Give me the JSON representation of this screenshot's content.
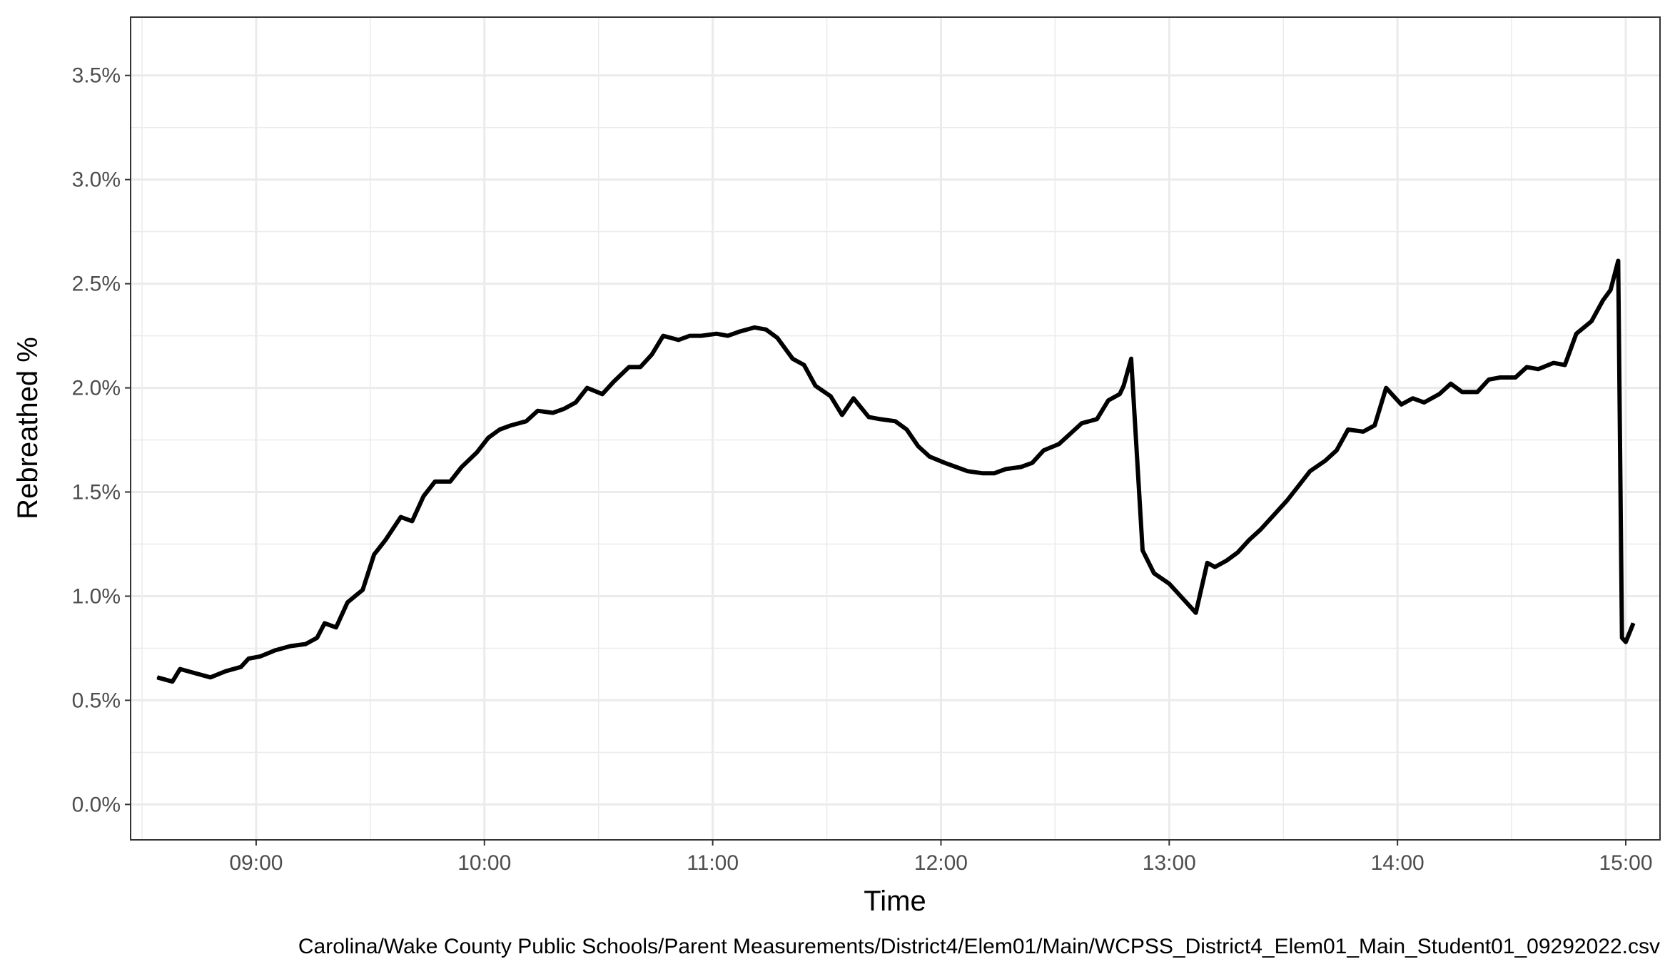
{
  "chart_data": {
    "type": "line",
    "xlabel": "Time",
    "ylabel": "Rebreathed %",
    "caption": "Carolina/Wake County Public Schools/Parent Measurements/District4/Elem01/Main/WCPSS_District4_Elem01_Main_Student01_09292022.csv",
    "x_tick_labels": [
      "09:00",
      "10:00",
      "11:00",
      "12:00",
      "13:00",
      "14:00",
      "15:00"
    ],
    "y_tick_labels": [
      "0.0%",
      "0.5%",
      "1.0%",
      "1.5%",
      "2.0%",
      "2.5%",
      "3.0%",
      "3.5%"
    ],
    "y_ticks": [
      0.0,
      0.5,
      1.0,
      1.5,
      2.0,
      2.5,
      3.0,
      3.5
    ],
    "xlim": [
      "08:27",
      "15:09"
    ],
    "ylim": [
      -0.17,
      3.78
    ],
    "grid": true,
    "line_color": "#000000",
    "series": [
      {
        "x": [
          "08:34",
          "08:38",
          "08:40",
          "08:44",
          "08:48",
          "08:52",
          "08:56",
          "08:58",
          "09:01",
          "09:05",
          "09:09",
          "09:13",
          "09:16",
          "09:18",
          "09:21",
          "09:24",
          "09:28",
          "09:31",
          "09:34",
          "09:38",
          "09:41",
          "09:44",
          "09:47",
          "09:51",
          "09:54",
          "09:58",
          "10:01",
          "10:04",
          "10:07",
          "10:11",
          "10:14",
          "10:18",
          "10:21",
          "10:24",
          "10:27",
          "10:31",
          "10:34",
          "10:38",
          "10:41",
          "10:44",
          "10:47",
          "10:51",
          "10:54",
          "10:57",
          "11:01",
          "11:04",
          "11:07",
          "11:11",
          "11:14",
          "11:17",
          "11:21",
          "11:24",
          "11:27",
          "11:31",
          "11:34",
          "11:37",
          "11:41",
          "11:44",
          "11:48",
          "11:51",
          "11:54",
          "11:57",
          "12:01",
          "12:04",
          "12:07",
          "12:11",
          "12:14",
          "12:17",
          "12:21",
          "12:24",
          "12:27",
          "12:31",
          "12:34",
          "12:37",
          "12:41",
          "12:44",
          "12:47",
          "12:48",
          "12:50",
          "12:53",
          "12:56",
          "13:00",
          "13:03",
          "13:05",
          "13:07",
          "13:10",
          "13:12",
          "13:15",
          "13:18",
          "13:21",
          "13:24",
          "13:27",
          "13:31",
          "13:34",
          "13:37",
          "13:41",
          "13:44",
          "13:47",
          "13:51",
          "13:54",
          "13:57",
          "14:01",
          "14:04",
          "14:07",
          "14:11",
          "14:14",
          "14:17",
          "14:21",
          "14:24",
          "14:27",
          "14:31",
          "14:34",
          "14:37",
          "14:41",
          "14:44",
          "14:47",
          "14:51",
          "14:54",
          "14:56",
          "14:58",
          "14:59",
          "15:00",
          "15:02"
        ],
        "values": [
          0.61,
          0.59,
          0.65,
          0.63,
          0.61,
          0.64,
          0.66,
          0.7,
          0.71,
          0.74,
          0.76,
          0.77,
          0.8,
          0.87,
          0.85,
          0.97,
          1.03,
          1.2,
          1.27,
          1.38,
          1.36,
          1.48,
          1.55,
          1.55,
          1.62,
          1.69,
          1.76,
          1.8,
          1.82,
          1.84,
          1.89,
          1.88,
          1.9,
          1.93,
          2.0,
          1.97,
          2.03,
          2.1,
          2.1,
          2.16,
          2.25,
          2.23,
          2.25,
          2.25,
          2.26,
          2.25,
          2.27,
          2.29,
          2.28,
          2.24,
          2.14,
          2.11,
          2.01,
          1.96,
          1.87,
          1.95,
          1.86,
          1.85,
          1.84,
          1.8,
          1.72,
          1.67,
          1.64,
          1.62,
          1.6,
          1.59,
          1.59,
          1.61,
          1.62,
          1.64,
          1.7,
          1.73,
          1.78,
          1.83,
          1.85,
          1.94,
          1.97,
          2.01,
          2.14,
          1.22,
          1.11,
          1.06,
          1.0,
          0.96,
          0.92,
          1.16,
          1.14,
          1.17,
          1.21,
          1.27,
          1.32,
          1.38,
          1.46,
          1.53,
          1.6,
          1.65,
          1.7,
          1.8,
          1.79,
          1.82,
          2.0,
          1.92,
          1.95,
          1.93,
          1.97,
          2.02,
          1.98,
          1.98,
          2.04,
          2.05,
          2.05,
          2.1,
          2.09,
          2.12,
          2.11,
          2.26,
          2.32,
          2.42,
          2.47,
          2.61,
          0.8,
          0.78,
          0.87
        ]
      }
    ]
  }
}
